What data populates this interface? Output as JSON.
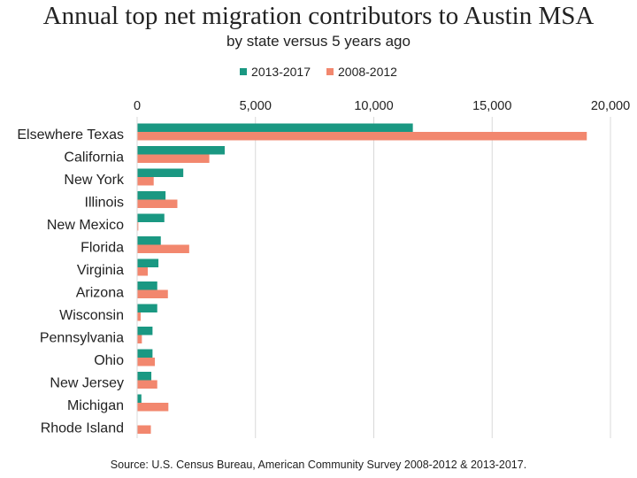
{
  "chart_data": {
    "type": "bar",
    "orientation": "horizontal",
    "title": "Annual top net migration contributors to Austin MSA",
    "subtitle": "by state versus 5 years ago",
    "categories": [
      "Elsewhere Texas",
      "California",
      "New York",
      "Illinois",
      "New Mexico",
      "Florida",
      "Virginia",
      "Arizona",
      "Wisconsin",
      "Pennsylvania",
      "Ohio",
      "New Jersey",
      "Michigan",
      "Rhode Island"
    ],
    "series": [
      {
        "name": "2013-2017",
        "color": "#1a9882",
        "values": [
          11650,
          3700,
          1950,
          1200,
          1150,
          1000,
          900,
          850,
          850,
          650,
          650,
          600,
          180,
          0
        ]
      },
      {
        "name": "2008-2012",
        "color": "#f2876e",
        "values": [
          19000,
          3050,
          700,
          1700,
          50,
          2200,
          450,
          1300,
          150,
          200,
          750,
          850,
          1320,
          580
        ]
      }
    ],
    "xlim": [
      0,
      20000
    ],
    "ticks": [
      0,
      5000,
      10000,
      15000,
      20000
    ],
    "tick_labels": [
      "0",
      "5,000",
      "10,000",
      "15,000",
      "20,000"
    ],
    "grid": true,
    "legend_position": "top"
  },
  "source": "Source:  U.S. Census Bureau, American Community Survey 2008-2012 & 2013-2017."
}
